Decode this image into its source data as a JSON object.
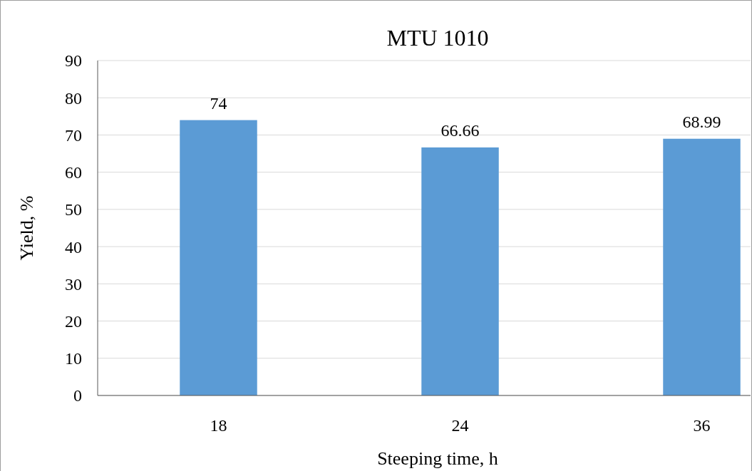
{
  "chart_data": {
    "type": "bar",
    "title": "MTU 1010",
    "xlabel": "Steeping time, h",
    "ylabel": "Yield, %",
    "categories": [
      "18",
      "24",
      "36"
    ],
    "values": [
      74,
      66.66,
      68.99
    ],
    "color": "#5b9bd5",
    "ylim": [
      0,
      90
    ],
    "yticks": [
      0,
      10,
      20,
      30,
      40,
      50,
      60,
      70,
      80,
      90
    ],
    "grid": "y",
    "data_labels": true
  }
}
